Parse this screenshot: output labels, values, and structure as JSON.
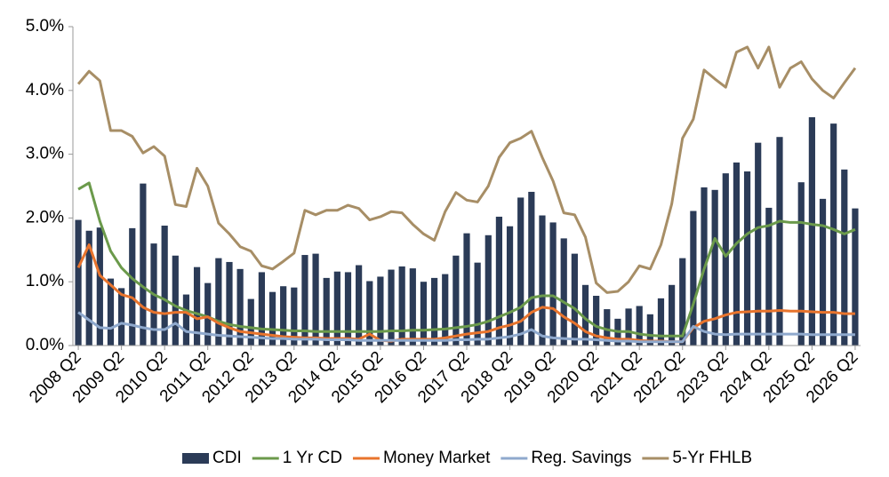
{
  "chart_data": {
    "type": "bar_line",
    "categories": [
      "2008 Q2",
      null,
      null,
      null,
      "2009 Q2",
      null,
      null,
      null,
      "2010 Q2",
      null,
      null,
      null,
      "2011 Q2",
      null,
      null,
      null,
      "2012 Q2",
      null,
      null,
      null,
      "2013 Q2",
      null,
      null,
      null,
      "2014 Q2",
      null,
      null,
      null,
      "2015 Q2",
      null,
      null,
      null,
      "2016 Q2",
      null,
      null,
      null,
      "2017 Q2",
      null,
      null,
      null,
      "2018 Q2",
      null,
      null,
      null,
      "2019 Q2",
      null,
      null,
      null,
      "2020 Q2",
      null,
      null,
      null,
      "2021 Q2",
      null,
      null,
      null,
      "2022 Q2",
      null,
      null,
      null,
      "2023 Q2",
      null,
      null,
      null,
      "2024 Q2",
      null,
      null,
      null,
      "2025 Q2",
      null,
      null,
      null,
      "2026 Q2"
    ],
    "series": [
      {
        "name": "CDI",
        "type": "bar",
        "color": "#2b3b57",
        "values": [
          1.97,
          1.8,
          1.85,
          1.05,
          0.9,
          1.84,
          2.54,
          1.6,
          1.88,
          1.41,
          0.8,
          1.23,
          0.98,
          1.37,
          1.31,
          1.2,
          0.73,
          1.15,
          0.84,
          0.93,
          0.91,
          1.42,
          1.44,
          1.06,
          1.16,
          1.15,
          1.26,
          1.01,
          1.08,
          1.19,
          1.24,
          1.21,
          1.0,
          1.06,
          1.12,
          1.41,
          1.76,
          1.3,
          1.73,
          2.02,
          1.87,
          2.32,
          2.41,
          2.04,
          1.93,
          1.68,
          1.44,
          0.95,
          0.78,
          0.57,
          0.42,
          0.58,
          0.62,
          0.49,
          0.74,
          0.95,
          1.37,
          2.11,
          2.48,
          2.44,
          2.7,
          2.87,
          2.73,
          3.18,
          2.16,
          3.27,
          null,
          2.56,
          3.58,
          2.3,
          3.48,
          2.76,
          2.15
        ]
      },
      {
        "name": "1 Yr CD",
        "type": "line",
        "color": "#6b9a4b",
        "values": [
          2.45,
          2.55,
          1.95,
          1.48,
          1.22,
          1.05,
          0.92,
          0.8,
          0.72,
          0.62,
          0.55,
          0.5,
          0.45,
          0.38,
          0.33,
          0.3,
          0.28,
          0.26,
          0.25,
          0.24,
          0.23,
          0.23,
          0.22,
          0.22,
          0.22,
          0.22,
          0.22,
          0.22,
          0.22,
          0.23,
          0.23,
          0.24,
          0.24,
          0.25,
          0.26,
          0.28,
          0.3,
          0.33,
          0.38,
          0.45,
          0.52,
          0.6,
          0.75,
          0.78,
          0.78,
          0.68,
          0.58,
          0.42,
          0.3,
          0.25,
          0.22,
          0.22,
          0.18,
          0.16,
          0.15,
          0.15,
          0.15,
          0.65,
          1.2,
          1.68,
          1.4,
          1.6,
          1.75,
          1.85,
          1.88,
          1.95,
          1.93,
          1.93,
          1.9,
          1.88,
          1.82,
          1.75,
          1.82
        ]
      },
      {
        "name": "Money Market",
        "type": "line",
        "color": "#e8742d",
        "values": [
          1.22,
          1.58,
          1.1,
          0.95,
          0.8,
          0.75,
          0.6,
          0.52,
          0.5,
          0.52,
          0.52,
          0.42,
          0.45,
          0.35,
          0.28,
          0.22,
          0.2,
          0.18,
          0.16,
          0.14,
          0.13,
          0.12,
          0.12,
          0.11,
          0.11,
          0.11,
          0.1,
          0.18,
          0.08,
          0.07,
          0.1,
          0.1,
          0.1,
          0.1,
          0.12,
          0.15,
          0.18,
          0.2,
          0.22,
          0.28,
          0.32,
          0.38,
          0.52,
          0.6,
          0.58,
          0.45,
          0.35,
          0.22,
          0.15,
          0.12,
          0.1,
          0.1,
          0.08,
          0.07,
          0.07,
          0.06,
          0.06,
          0.28,
          0.38,
          0.42,
          0.48,
          0.52,
          0.53,
          0.54,
          0.54,
          0.55,
          0.54,
          0.54,
          0.53,
          0.52,
          0.52,
          0.5,
          0.5
        ]
      },
      {
        "name": "Reg. Savings",
        "type": "line",
        "color": "#8fa9cd",
        "values": [
          0.52,
          0.4,
          0.28,
          0.27,
          0.35,
          0.32,
          0.28,
          0.25,
          0.25,
          0.35,
          0.22,
          0.2,
          0.18,
          0.16,
          0.15,
          0.14,
          0.13,
          0.12,
          0.11,
          0.11,
          0.1,
          0.1,
          0.1,
          0.09,
          0.09,
          0.09,
          0.08,
          0.08,
          0.08,
          0.08,
          0.08,
          0.08,
          0.08,
          0.08,
          0.08,
          0.09,
          0.09,
          0.1,
          0.1,
          0.12,
          0.14,
          0.18,
          0.25,
          0.15,
          0.12,
          0.11,
          0.1,
          0.1,
          0.09,
          0.08,
          0.07,
          0.07,
          0.06,
          0.06,
          0.06,
          0.06,
          0.06,
          0.3,
          0.22,
          0.18,
          0.17,
          0.18,
          0.18,
          0.18,
          0.18,
          0.18,
          0.18,
          0.18,
          0.17,
          0.17,
          0.17,
          0.17,
          0.17
        ]
      },
      {
        "name": "5-Yr FHLB",
        "type": "line",
        "color": "#a78e66",
        "values": [
          4.1,
          4.3,
          4.15,
          3.37,
          3.37,
          3.28,
          3.02,
          3.12,
          2.97,
          2.21,
          2.18,
          2.78,
          2.5,
          1.92,
          1.75,
          1.55,
          1.48,
          1.25,
          1.2,
          1.32,
          1.45,
          2.12,
          2.05,
          2.12,
          2.12,
          2.2,
          2.15,
          1.97,
          2.02,
          2.1,
          2.08,
          1.9,
          1.75,
          1.65,
          2.1,
          2.4,
          2.28,
          2.25,
          2.5,
          2.95,
          3.18,
          3.25,
          3.36,
          2.95,
          2.58,
          2.08,
          2.05,
          1.7,
          0.98,
          0.83,
          0.85,
          1.0,
          1.25,
          1.2,
          1.58,
          2.22,
          3.25,
          3.55,
          4.32,
          4.18,
          4.05,
          4.6,
          4.68,
          4.35,
          4.68,
          4.05,
          4.35,
          4.45,
          4.18,
          4.0,
          3.88,
          4.12,
          4.35
        ]
      }
    ],
    "ylim": [
      0,
      5
    ],
    "yticks": [
      {
        "value": 0,
        "label": "0.0%"
      },
      {
        "value": 1,
        "label": "1.0%"
      },
      {
        "value": 2,
        "label": "2.0%"
      },
      {
        "value": 3,
        "label": "3.0%"
      },
      {
        "value": 4,
        "label": "4.0%"
      },
      {
        "value": 5,
        "label": "5.0%"
      }
    ],
    "grid": false,
    "legend": "bottom"
  }
}
